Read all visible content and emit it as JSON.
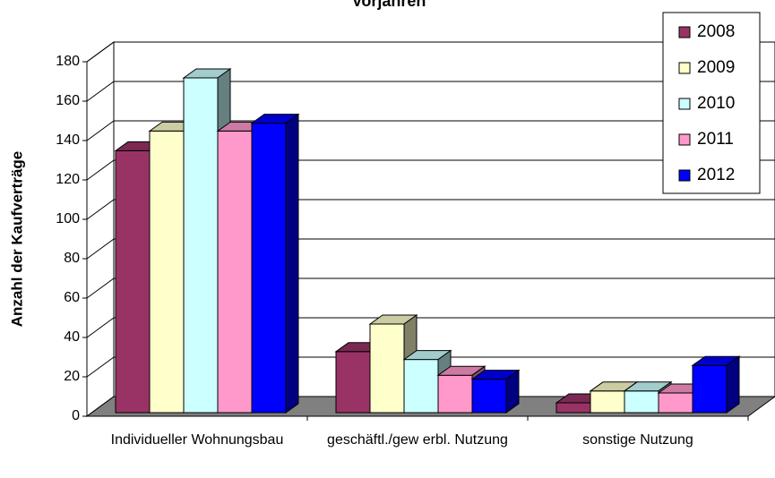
{
  "chart_data": {
    "type": "bar3d",
    "title": "Vorjahren",
    "y_label": "Anzahl der Kaufverträge",
    "categories": [
      "Individueller Wohnungsbau",
      "geschäftl./gew erbl. Nutzung",
      "sonstige Nutzung"
    ],
    "series": [
      {
        "name": "2008",
        "color": "#993366",
        "values": [
          133,
          31,
          5
        ]
      },
      {
        "name": "2009",
        "color": "#FFFFCC",
        "values": [
          143,
          45,
          11
        ]
      },
      {
        "name": "2010",
        "color": "#CCFFFF",
        "values": [
          170,
          27,
          11
        ]
      },
      {
        "name": "2011",
        "color": "#FF99CC",
        "values": [
          143,
          19,
          10
        ]
      },
      {
        "name": "2012",
        "color": "#0000FF",
        "values": [
          147,
          17,
          24
        ]
      }
    ],
    "ylim": [
      0,
      180
    ],
    "yticks": [
      0,
      20,
      40,
      60,
      80,
      100,
      120,
      140,
      160,
      180
    ],
    "grid": true,
    "legend": "top-right"
  }
}
